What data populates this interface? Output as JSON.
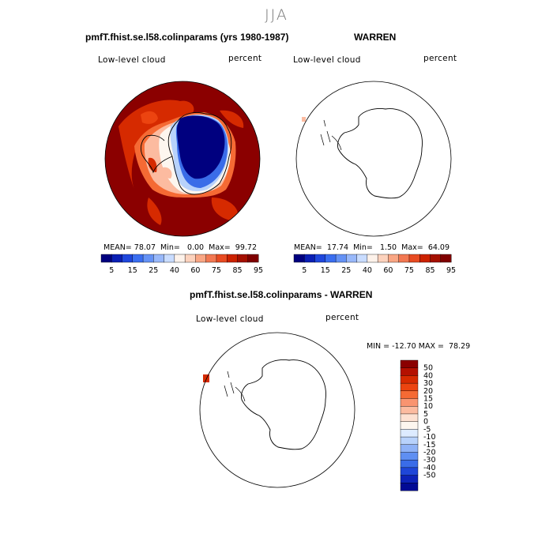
{
  "season": "JJA",
  "panels": [
    {
      "title": "pmfT.fhist.se.l58.colinparams (yrs 1980-1987)",
      "variable": "Low-level cloud",
      "units": "percent",
      "stats": {
        "mean_label": "MEAN=",
        "mean": "78.07",
        "min_label": "Min=",
        "min": "0.00",
        "max_label": "Max=",
        "max": "99.72"
      }
    },
    {
      "title": "WARREN",
      "variable": "Low-level cloud",
      "units": "percent",
      "stats": {
        "mean_label": "MEAN=",
        "mean": "17.74",
        "min_label": "Min=",
        "min": "1.50",
        "max_label": "Max=",
        "max": "64.09"
      }
    },
    {
      "title": "pmfT.fhist.se.l58.colinparams - WARREN",
      "variable": "Low-level cloud",
      "units": "percent",
      "stats_text": "MIN = -12.70 MAX =  78.29"
    }
  ],
  "colorbar_horizontal": {
    "colors": [
      "#00007f",
      "#0a1fb4",
      "#1f47dc",
      "#3a6ef0",
      "#6592f5",
      "#98b8fa",
      "#c9dcff",
      "#fdf2ea",
      "#fcd2bd",
      "#f9a684",
      "#f27852",
      "#e84b22",
      "#cc2200",
      "#a41000",
      "#7f0000"
    ],
    "tick_labels": [
      "5",
      "15",
      "25",
      "40",
      "60",
      "75",
      "85",
      "95"
    ]
  },
  "colorbar_vertical": {
    "colors": [
      "#8b0000",
      "#b41000",
      "#d62a00",
      "#ec4410",
      "#f56a34",
      "#f99470",
      "#fcbba0",
      "#fde1d2",
      "#fdf6ef",
      "#ddebff",
      "#b8d2fb",
      "#8fb2f6",
      "#5f8ff2",
      "#3a6ce8",
      "#1f46d8",
      "#0d22b8",
      "#020a94"
    ],
    "tick_labels": [
      "50",
      "40",
      "30",
      "20",
      "15",
      "10",
      "5",
      "0",
      "-5",
      "-10",
      "-15",
      "-20",
      "-30",
      "-40",
      "-50"
    ]
  }
}
